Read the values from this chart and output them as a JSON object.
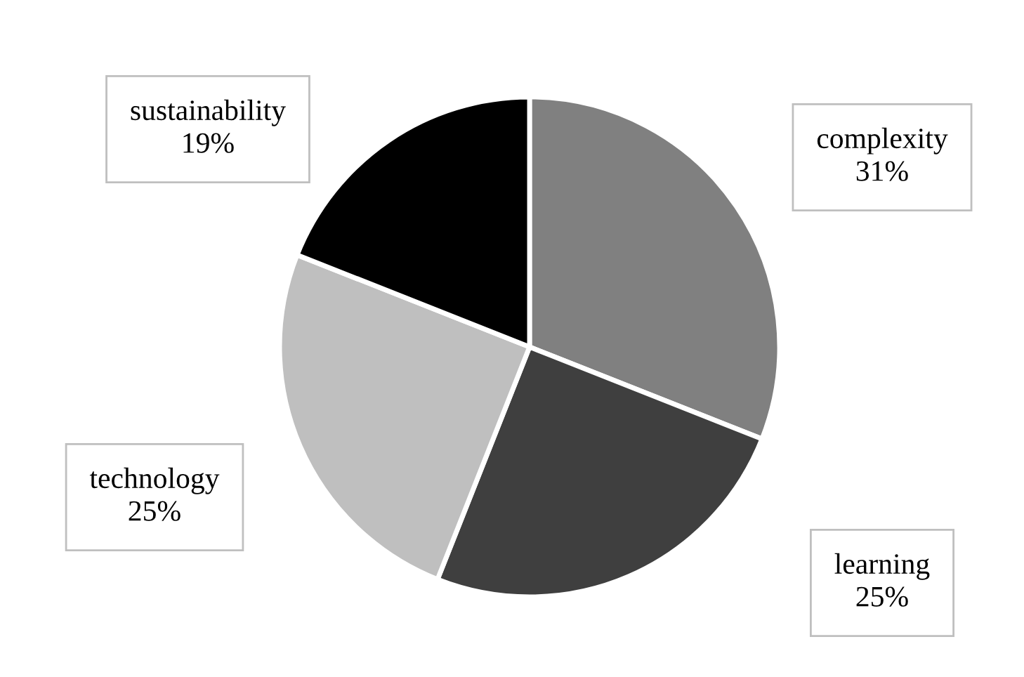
{
  "chart_data": {
    "type": "pie",
    "categories": [
      "complexity",
      "learning",
      "technology",
      "sustainability"
    ],
    "values": [
      31,
      25,
      25,
      19
    ],
    "colors": [
      "#808080",
      "#3f3f3f",
      "#bfbfbf",
      "#000000"
    ],
    "value_labels": [
      "31%",
      "25%",
      "25%",
      "19%"
    ],
    "legend": false
  }
}
